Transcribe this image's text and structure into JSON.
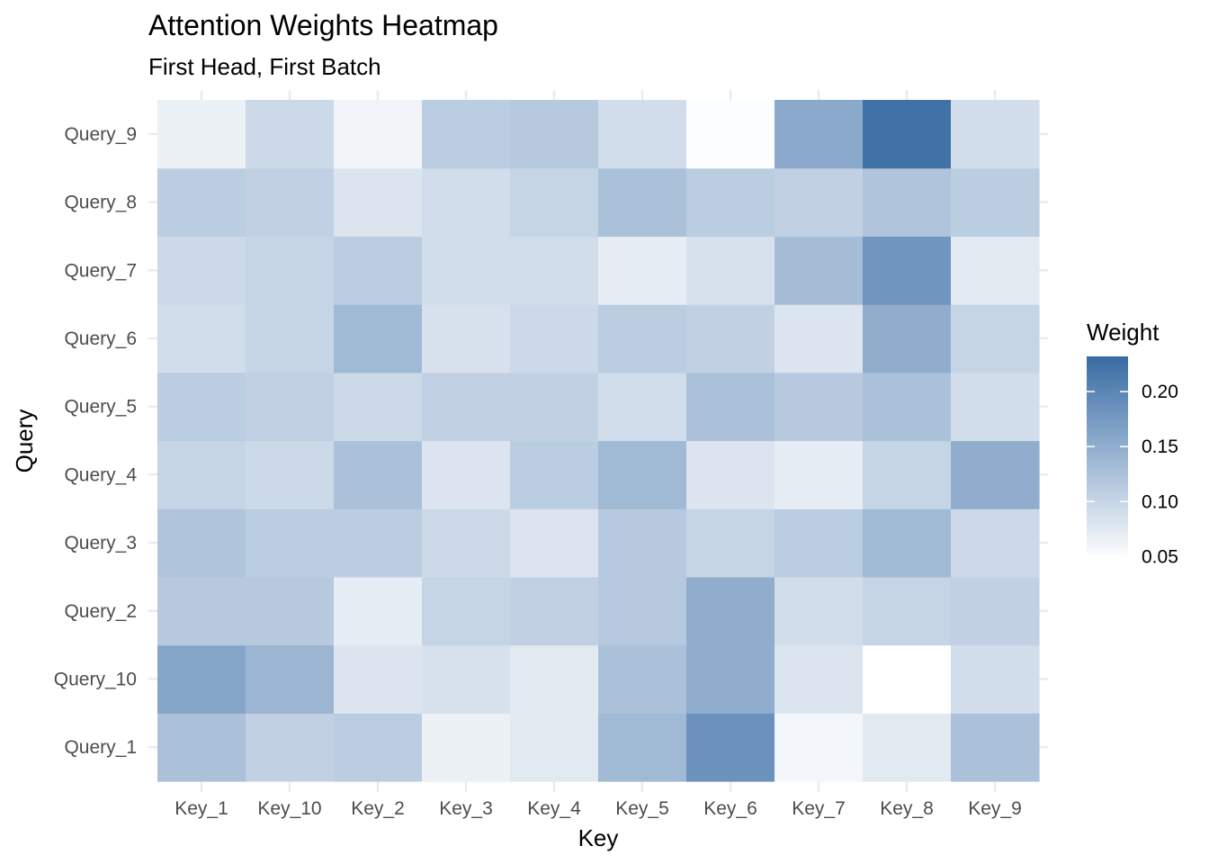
{
  "chart_data": {
    "type": "heatmap",
    "title": "Attention Weights Heatmap",
    "subtitle": "First Head, First Batch",
    "xlabel": "Key",
    "ylabel": "Query",
    "x_categories": [
      "Key_1",
      "Key_10",
      "Key_2",
      "Key_3",
      "Key_4",
      "Key_5",
      "Key_6",
      "Key_7",
      "Key_8",
      "Key_9"
    ],
    "y_categories": [
      "Query_1",
      "Query_10",
      "Query_2",
      "Query_3",
      "Query_4",
      "Query_5",
      "Query_6",
      "Query_7",
      "Query_8",
      "Query_9"
    ],
    "values": [
      [
        0.125,
        0.105,
        0.11,
        0.065,
        0.075,
        0.135,
        0.185,
        0.058,
        0.075,
        0.125
      ],
      [
        0.16,
        0.14,
        0.08,
        0.085,
        0.075,
        0.125,
        0.15,
        0.08,
        0.047,
        0.09
      ],
      [
        0.115,
        0.115,
        0.07,
        0.1,
        0.105,
        0.115,
        0.15,
        0.09,
        0.1,
        0.105
      ],
      [
        0.12,
        0.11,
        0.11,
        0.095,
        0.08,
        0.115,
        0.1,
        0.11,
        0.135,
        0.095
      ],
      [
        0.1,
        0.095,
        0.125,
        0.08,
        0.11,
        0.135,
        0.08,
        0.07,
        0.1,
        0.15
      ],
      [
        0.11,
        0.105,
        0.095,
        0.105,
        0.105,
        0.09,
        0.125,
        0.115,
        0.125,
        0.09
      ],
      [
        0.09,
        0.1,
        0.135,
        0.085,
        0.095,
        0.11,
        0.105,
        0.08,
        0.15,
        0.1
      ],
      [
        0.095,
        0.1,
        0.11,
        0.09,
        0.09,
        0.07,
        0.085,
        0.13,
        0.18,
        0.075
      ],
      [
        0.11,
        0.105,
        0.08,
        0.09,
        0.1,
        0.125,
        0.11,
        0.105,
        0.12,
        0.11
      ],
      [
        0.065,
        0.095,
        0.06,
        0.11,
        0.115,
        0.09,
        0.05,
        0.155,
        0.225,
        0.09
      ]
    ],
    "color_scale": {
      "low": "#ffffff",
      "high": "#386ca5",
      "min": 0.047,
      "max": 0.232
    },
    "legend": {
      "title": "Weight",
      "placement": "right",
      "breaks": [
        0.05,
        0.1,
        0.15,
        0.2
      ],
      "labels": [
        "0.05",
        "0.10",
        "0.15",
        "0.20"
      ]
    },
    "grid": true
  }
}
